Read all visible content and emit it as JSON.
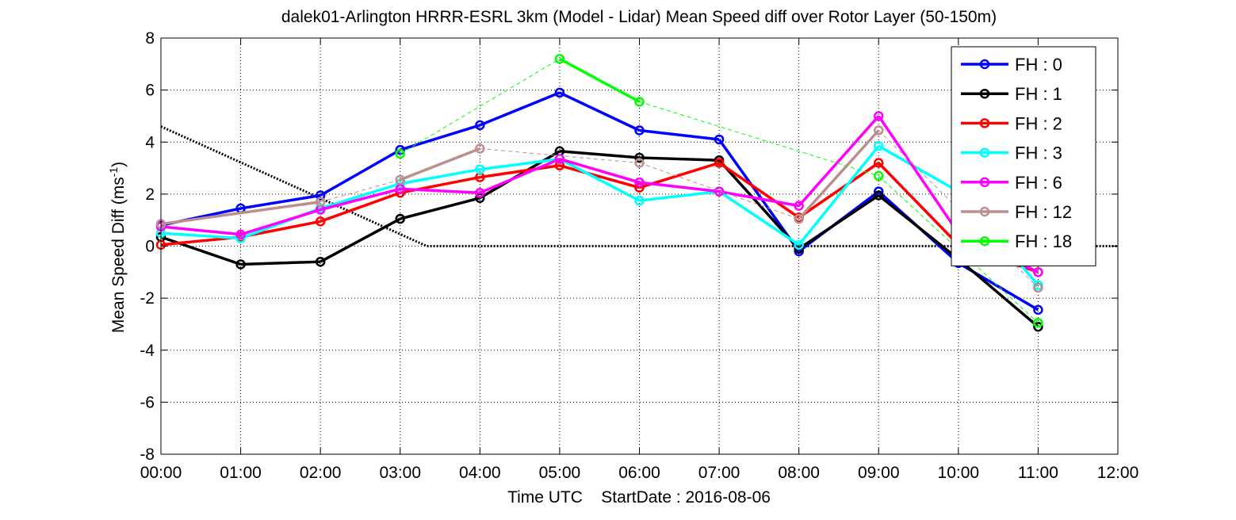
{
  "chart_data": {
    "type": "line",
    "title": "dalek01-Arlington HRRR-ESRL 3km (Model - Lidar) Mean Speed diff over Rotor Layer (50-150m)",
    "xlabel": "Time UTC",
    "xlabel_suffix": "StartDate : 2016-08-06",
    "ylabel_main": "Mean Speed Diff (ms",
    "ylabel_sup": "-1",
    "ylabel_end": ")",
    "xlim": [
      "00:00",
      "12:00"
    ],
    "ylim": [
      -8,
      8
    ],
    "grid": true,
    "legend_position": "top-right",
    "x_ticks": [
      "00:00",
      "01:00",
      "02:00",
      "03:00",
      "04:00",
      "05:00",
      "06:00",
      "07:00",
      "08:00",
      "09:00",
      "10:00",
      "11:00",
      "12:00"
    ],
    "y_ticks": [
      "-8",
      "-6",
      "-4",
      "-2",
      "0",
      "2",
      "4",
      "6",
      "8"
    ],
    "series": [
      {
        "name": "FH : 0",
        "color": "#0000ff",
        "x": [
          "00:00",
          "01:00",
          "02:00",
          "03:00",
          "04:00",
          "05:00",
          "06:00",
          "07:00",
          "08:00",
          "09:00",
          "10:00",
          "11:00"
        ],
        "values": [
          0.8,
          1.45,
          1.95,
          3.7,
          4.65,
          5.9,
          4.45,
          4.1,
          -0.2,
          2.1,
          -0.65,
          -2.45
        ]
      },
      {
        "name": "FH : 1",
        "color": "#000000",
        "x": [
          "00:00",
          "01:00",
          "02:00",
          "03:00",
          "04:00",
          "05:00",
          "06:00",
          "07:00",
          "08:00",
          "09:00",
          "10:00",
          "11:00"
        ],
        "values": [
          0.35,
          -0.7,
          -0.6,
          1.05,
          1.85,
          3.65,
          3.4,
          3.3,
          -0.1,
          1.95,
          -0.5,
          -3.1
        ]
      },
      {
        "name": "FH : 2",
        "color": "#ff0000",
        "x": [
          "00:00",
          "01:00",
          "02:00",
          "03:00",
          "04:00",
          "05:00",
          "06:00",
          "07:00",
          "08:00",
          "09:00",
          "10:00",
          "11:00"
        ],
        "values": [
          0.05,
          0.35,
          0.95,
          2.05,
          2.65,
          3.1,
          2.25,
          3.2,
          1.1,
          3.2,
          0.05,
          -1.0
        ]
      },
      {
        "name": "FH : 3",
        "color": "#00ffff",
        "x": [
          "00:00",
          "01:00",
          "02:00",
          "03:00",
          "04:00",
          "05:00",
          "06:00",
          "07:00",
          "08:00",
          "09:00",
          "10:00",
          "11:00"
        ],
        "values": [
          0.5,
          0.3,
          1.45,
          2.4,
          2.95,
          3.35,
          1.75,
          2.1,
          0.05,
          3.85,
          2.1,
          -1.5
        ]
      },
      {
        "name": "FH : 6",
        "color": "#ff00ff",
        "x": [
          "00:00",
          "01:00",
          "02:00",
          "03:00",
          "04:00",
          "05:00",
          "06:00",
          "07:00",
          "08:00",
          "09:00",
          "10:00",
          "11:00"
        ],
        "values": [
          0.75,
          0.45,
          1.4,
          2.2,
          2.05,
          3.35,
          2.45,
          2.1,
          1.55,
          5.0,
          0.5,
          -1.0
        ]
      },
      {
        "name": "FH : 12",
        "color": "#bc8f8f",
        "x": [
          "00:00",
          "02:00",
          "03:00",
          "04:00",
          "06:00",
          "08:00",
          "09:00",
          "11:00"
        ],
        "values": [
          0.85,
          1.7,
          2.55,
          3.75,
          3.2,
          1.05,
          4.45,
          -1.6
        ],
        "connect_all": [
          true,
          false,
          true,
          false,
          false,
          true,
          false
        ]
      },
      {
        "name": "FH : 18",
        "color": "#00ff00",
        "x": [
          "03:00",
          "05:00",
          "06:00",
          "09:00",
          "11:00"
        ],
        "values": [
          3.55,
          7.2,
          5.55,
          2.7,
          -2.95
        ],
        "connect_all": [
          false,
          true,
          false,
          false
        ]
      }
    ],
    "reference_line": {
      "style": "dotted",
      "color": "#000000",
      "x": [
        "00:00",
        "03:20",
        "12:00"
      ],
      "values": [
        4.6,
        0.0,
        0.0
      ]
    }
  }
}
